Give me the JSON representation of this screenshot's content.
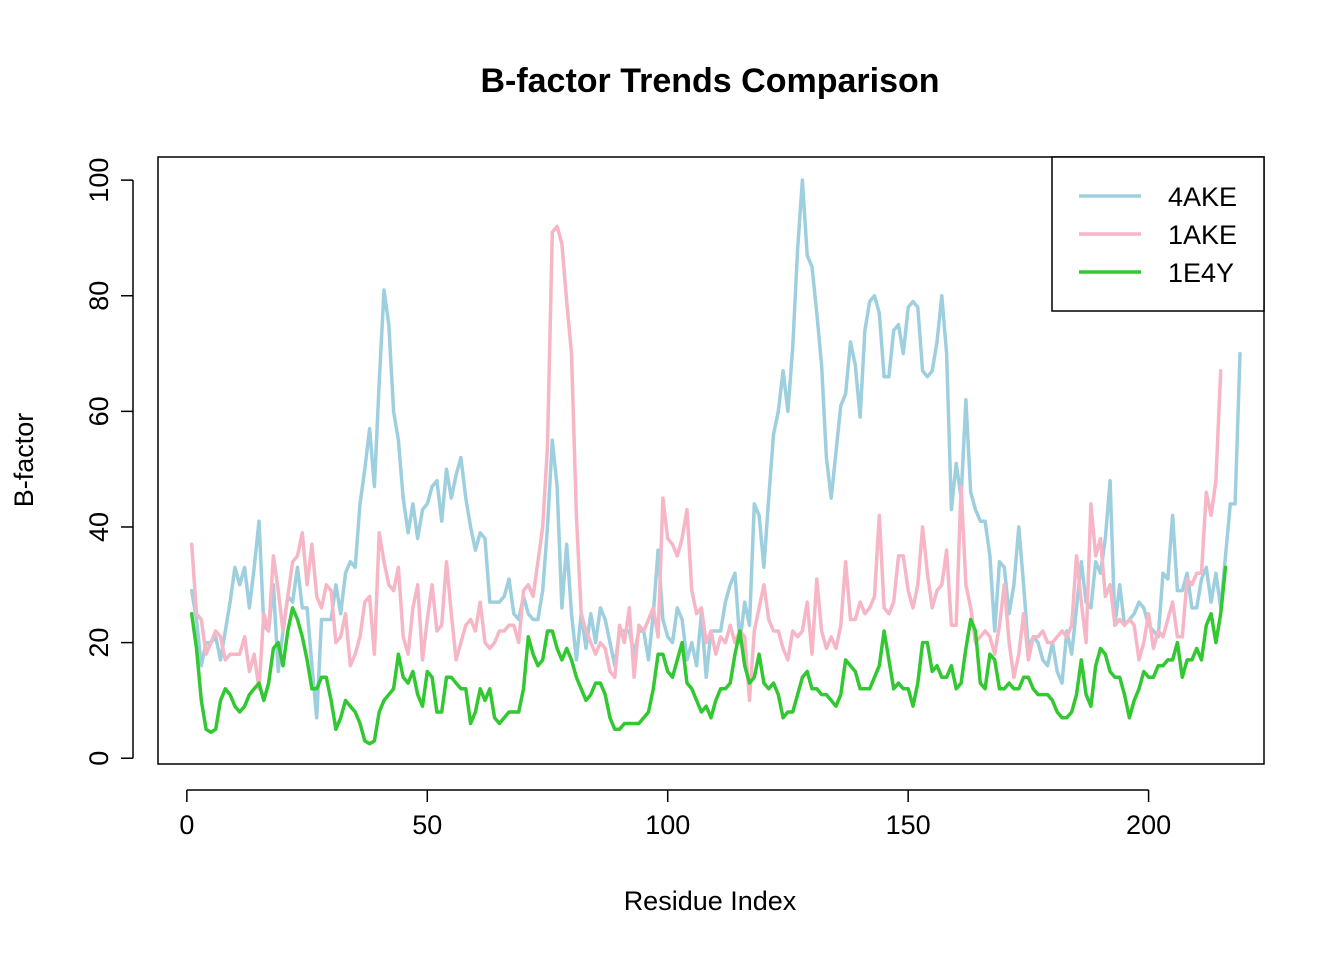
{
  "chart_data": {
    "type": "line",
    "title": "B-factor Trends Comparison",
    "xlabel": "Residue Index",
    "ylabel": "B-factor",
    "xlim": [
      -6,
      224
    ],
    "ylim": [
      -1,
      104
    ],
    "xticks": [
      0,
      50,
      100,
      150,
      200
    ],
    "yticks": [
      0,
      20,
      40,
      60,
      80,
      100
    ],
    "legend_position": "top-right",
    "x_start": 1,
    "series": [
      {
        "name": "4AKE",
        "color": "#9ECFDF",
        "values": [
          29,
          24,
          16,
          20,
          20,
          21,
          17,
          22,
          27,
          33,
          30,
          33,
          26,
          33,
          41,
          23,
          22,
          30,
          15,
          22,
          28,
          27,
          33,
          26,
          26,
          16,
          7,
          24,
          24,
          24,
          30,
          25,
          32,
          34,
          33,
          44,
          50,
          57,
          47,
          65,
          81,
          75,
          60,
          55,
          45,
          39,
          44,
          38,
          43,
          44,
          47,
          48,
          41,
          50,
          45,
          49,
          52,
          45,
          40,
          36,
          39,
          38,
          27,
          27,
          27,
          28,
          31,
          25,
          24,
          28,
          25,
          24,
          24,
          29,
          40,
          55,
          47,
          26,
          37,
          25,
          17,
          25,
          19,
          25,
          20,
          26,
          24,
          20,
          16,
          22,
          22,
          22,
          18,
          22,
          22,
          17,
          25,
          36,
          24,
          21,
          20,
          26,
          24,
          17,
          20,
          16,
          25,
          14,
          22,
          22,
          22,
          27,
          30,
          32,
          20,
          27,
          23,
          44,
          42,
          33,
          45,
          56,
          60,
          67,
          60,
          71,
          88,
          100,
          87,
          85,
          77,
          68,
          52,
          45,
          53,
          61,
          63,
          72,
          68,
          59,
          74,
          79,
          80,
          77,
          66,
          66,
          74,
          75,
          70,
          78,
          79,
          78,
          67,
          66,
          67,
          72,
          80,
          70,
          43,
          51,
          45,
          62,
          46,
          43,
          41,
          41,
          35,
          22,
          34,
          33,
          25,
          30,
          40,
          30,
          19,
          21,
          20,
          17,
          16,
          20,
          15,
          13,
          22,
          18,
          26,
          34,
          27,
          26,
          34,
          32,
          38,
          48,
          23,
          30,
          23,
          24,
          25,
          27,
          26,
          23,
          22,
          21,
          32,
          31,
          42,
          29,
          29,
          32,
          26,
          26,
          31,
          33,
          27,
          32,
          26,
          35,
          44,
          44,
          70
        ]
      },
      {
        "name": "1AKE",
        "color": "#F7B6C6",
        "values": [
          37,
          25,
          24,
          18,
          20,
          22,
          21,
          17,
          18,
          18,
          18,
          21,
          15,
          18,
          12,
          25,
          22,
          35,
          29,
          22,
          28,
          34,
          35,
          39,
          30,
          37,
          28,
          26,
          30,
          29,
          20,
          21,
          25,
          16,
          18,
          21,
          27,
          28,
          18,
          39,
          34,
          30,
          29,
          33,
          21,
          18,
          26,
          30,
          17,
          24,
          30,
          22,
          23,
          34,
          25,
          17,
          20,
          23,
          24,
          22,
          27,
          20,
          19,
          20,
          22,
          22,
          23,
          23,
          20,
          29,
          30,
          28,
          34,
          40,
          54,
          91,
          92,
          89,
          79,
          70,
          42,
          25,
          22,
          20,
          18,
          20,
          19,
          15,
          14,
          23,
          20,
          26,
          14,
          23,
          22,
          24,
          26,
          21,
          45,
          38,
          37,
          35,
          38,
          43,
          29,
          25,
          26,
          20,
          22,
          18,
          21,
          20,
          23,
          20,
          22,
          21,
          10,
          22,
          26,
          30,
          24,
          22,
          22,
          19,
          17,
          22,
          21,
          22,
          27,
          18,
          31,
          22,
          19,
          21,
          19,
          23,
          34,
          24,
          24,
          27,
          25,
          26,
          28,
          42,
          26,
          25,
          27,
          35,
          35,
          29,
          26,
          30,
          40,
          32,
          26,
          29,
          30,
          36,
          23,
          23,
          47,
          30,
          26,
          20,
          21,
          22,
          21,
          18,
          23,
          30,
          20,
          14,
          18,
          25,
          17,
          21,
          21,
          22,
          20,
          20,
          21,
          22,
          21,
          23,
          35,
          27,
          20,
          44,
          35,
          38,
          28,
          30,
          23,
          24,
          23,
          24,
          23,
          17,
          20,
          25,
          19,
          22,
          21,
          24,
          27,
          21,
          21,
          31,
          30,
          32,
          32,
          46,
          42,
          48,
          67
        ]
      },
      {
        "name": "1E4Y",
        "color": "#32C832",
        "values": [
          25,
          19,
          10,
          5,
          4.5,
          5,
          10,
          12,
          11,
          9,
          8,
          9,
          11,
          12,
          13,
          10,
          13,
          19,
          20,
          16,
          22,
          26,
          24,
          21,
          17,
          12,
          12,
          14,
          14,
          10,
          5,
          7,
          10,
          9,
          8,
          6,
          3,
          2.5,
          3,
          8,
          10,
          11,
          12,
          18,
          14,
          13,
          15,
          11,
          9,
          15,
          14,
          8,
          8,
          14,
          14,
          13,
          12,
          12,
          6,
          8,
          12,
          10,
          12,
          7,
          6,
          7,
          8,
          8,
          8,
          12,
          21,
          18,
          16,
          17,
          22,
          22,
          19,
          17,
          19,
          17,
          14,
          12,
          10,
          11,
          13,
          13,
          11,
          7,
          5,
          5,
          6,
          6,
          6,
          6,
          7,
          8,
          12,
          18,
          18,
          15,
          14,
          17,
          20,
          13,
          12,
          10,
          8,
          9,
          7,
          10,
          12,
          12,
          13,
          18,
          22,
          16,
          13,
          14,
          18,
          13,
          12,
          13,
          11,
          7,
          8,
          8,
          11,
          14,
          15,
          12,
          12,
          11,
          11,
          10,
          9,
          11,
          17,
          16,
          15,
          12,
          12,
          12,
          14,
          16,
          22,
          17,
          12,
          13,
          12,
          12,
          9,
          13,
          20,
          20,
          15,
          16,
          14,
          14,
          16,
          12,
          13,
          19,
          24,
          22,
          13,
          12,
          18,
          17,
          12,
          12,
          13,
          12,
          12,
          14,
          14,
          12,
          11,
          11,
          11,
          10,
          8,
          7,
          7,
          8,
          11,
          17,
          11,
          9,
          16,
          19,
          18,
          15,
          14,
          14,
          11,
          7,
          10,
          12,
          15,
          14,
          14,
          16,
          16,
          17,
          17,
          20,
          14,
          17,
          17,
          19,
          17,
          23,
          25,
          20,
          25,
          33
        ]
      }
    ]
  }
}
